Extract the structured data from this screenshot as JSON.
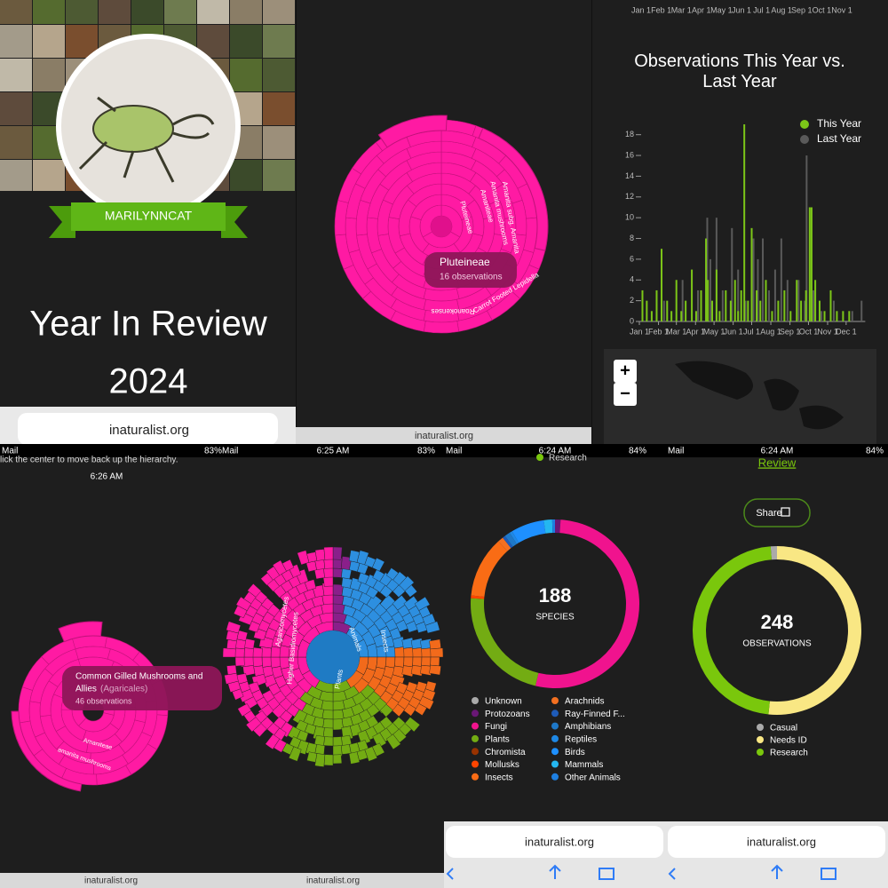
{
  "status": {
    "carrier": "Mail",
    "times": [
      "6:25 AM",
      "6:24 AM",
      "6:24 AM",
      "6:26 AM"
    ],
    "batteries": [
      "83%",
      "83%",
      "84%",
      "84%"
    ]
  },
  "profile": {
    "username": "MARILYNNCAT",
    "title": "Year In Review",
    "year": "2024"
  },
  "url": "inaturalist.org",
  "sunburst_top": {
    "tooltip_title": "Pluteineae",
    "tooltip_count": "16 observations",
    "ring_labels": [
      "Amanita subg. Amanita",
      "Amanita mushrooms",
      "Amaniteae",
      "Pluteineae",
      "Carrot Footed Lepidella",
      "Roanokenses"
    ]
  },
  "top_axis_labels": [
    "Jan 1",
    "Feb 1",
    "Mar 1",
    "Apr 1",
    "May 1",
    "Jun 1",
    "Jul 1",
    "Aug 1",
    "Sep 1",
    "Oct 1",
    "Nov 1"
  ],
  "map_controls": [
    "+",
    "−"
  ],
  "hint": "lick the center to move back up the hierarchy.",
  "sunburst_bottom_left": {
    "tooltip_title": "Common Gilled Mushrooms and",
    "tooltip_title_2": "Allies",
    "tooltip_latin": "(Agaricales)",
    "tooltip_count": "46 observations",
    "ring_labels": [
      "amanita mushrooms",
      "Amaniteae"
    ]
  },
  "sunburst_bottom_mid": {
    "labels": [
      "Animals",
      "Insects",
      "Plants",
      "Agaricomycetes",
      "Higher Basidiomycetes"
    ]
  },
  "cut_legend": "Research",
  "review_link": "Review",
  "share": "Share",
  "chart_data": [
    {
      "type": "bar",
      "title": "Observations This Year vs. Last Year",
      "xlim": [
        0,
        366
      ],
      "xticks": [
        {
          "value": 0,
          "label": "Jan 1"
        },
        {
          "value": 31,
          "label": "Feb 1"
        },
        {
          "value": 60,
          "label": "Mar 1"
        },
        {
          "value": 91,
          "label": "Apr 1"
        },
        {
          "value": 121,
          "label": "May 1"
        },
        {
          "value": 152,
          "label": "Jun 1"
        },
        {
          "value": 182,
          "label": "Jul 1"
        },
        {
          "value": 213,
          "label": "Aug 1"
        },
        {
          "value": 244,
          "label": "Sep 1"
        },
        {
          "value": 274,
          "label": "Oct 1"
        },
        {
          "value": 305,
          "label": "Nov 1"
        },
        {
          "value": 335,
          "label": "Dec 1"
        }
      ],
      "ylim": [
        0,
        19
      ],
      "yticks": [
        0,
        2,
        4,
        6,
        8,
        10,
        12,
        14,
        16,
        18
      ],
      "legend": "top-right",
      "series": [
        {
          "name": "Last Year",
          "color": "#5a5a5a",
          "x": [
            40,
            70,
            95,
            110,
            115,
            125,
            135,
            150,
            160,
            172,
            185,
            192,
            200,
            210,
            220,
            230,
            240,
            258,
            268,
            271,
            282,
            295,
            315,
            345,
            360
          ],
          "values": [
            2,
            4,
            3,
            10,
            6,
            10,
            3,
            9,
            5,
            2,
            8,
            6,
            8,
            3,
            5,
            8,
            4,
            4,
            2,
            16,
            3,
            1,
            2,
            1,
            2
          ]
        },
        {
          "name": "This Year",
          "color": "#7cc618",
          "x": [
            5,
            12,
            20,
            28,
            36,
            45,
            52,
            60,
            68,
            75,
            85,
            92,
            100,
            108,
            111,
            118,
            125,
            130,
            140,
            148,
            155,
            160,
            165,
            170,
            176,
            182,
            190,
            196,
            205,
            215,
            225,
            235,
            245,
            255,
            262,
            270,
            276,
            279,
            285,
            292,
            300,
            310,
            320,
            330,
            340
          ],
          "values": [
            3,
            2,
            1,
            3,
            7,
            2,
            1,
            4,
            1,
            2,
            5,
            1,
            3,
            8,
            4,
            2,
            5,
            1,
            3,
            2,
            4,
            1,
            3,
            19,
            2,
            9,
            3,
            2,
            4,
            1,
            2,
            3,
            1,
            4,
            2,
            3,
            11,
            11,
            4,
            2,
            1,
            3,
            1,
            1,
            1
          ]
        }
      ]
    },
    {
      "type": "pie",
      "total": 188,
      "center_label": "SPECIES",
      "categories": [
        "Unknown",
        "Protozoans",
        "Fungi",
        "Plants",
        "Chromista",
        "Mollusks",
        "Insects",
        "Arachnids",
        "Ray-Finned F...",
        "Amphibians",
        "Reptiles",
        "Birds",
        "Mammals",
        "Other Animals"
      ],
      "values": [
        0,
        2,
        99,
        42,
        0,
        1,
        22,
        2,
        1,
        2,
        1,
        12,
        3,
        1
      ],
      "colors": [
        "#aaaaaa",
        "#691776",
        "#f0138e",
        "#73ac13",
        "#993300",
        "#ff4500",
        "#f96c15",
        "#f37021",
        "#1e5bb8",
        "#1e78c8",
        "#1e88e5",
        "#1e90ff",
        "#24b7f0",
        "#1e7fe0"
      ]
    },
    {
      "type": "pie",
      "total": 248,
      "center_label": "OBSERVATIONS",
      "categories": [
        "Casual",
        "Needs ID",
        "Research"
      ],
      "values": [
        3,
        128,
        117
      ],
      "colors": [
        "#aaaaaa",
        "#f9e784",
        "#7ac70c"
      ]
    }
  ]
}
